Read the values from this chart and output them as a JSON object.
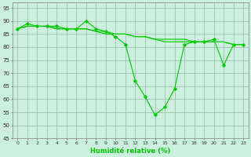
{
  "x": [
    0,
    1,
    2,
    3,
    4,
    5,
    6,
    7,
    8,
    9,
    10,
    11,
    12,
    13,
    14,
    15,
    16,
    17,
    18,
    19,
    20,
    21,
    22,
    23
  ],
  "y_main": [
    87,
    89,
    88,
    88,
    88,
    87,
    87,
    90,
    87,
    86,
    84,
    81,
    67,
    61,
    54,
    57,
    64,
    81,
    82,
    82,
    83,
    73,
    81,
    81
  ],
  "y_trend1": [
    87,
    88,
    88,
    88,
    87,
    87,
    87,
    87,
    86,
    86,
    85,
    85,
    84,
    84,
    83,
    83,
    83,
    83,
    82,
    82,
    82,
    82,
    81,
    81
  ],
  "y_trend2": [
    87,
    88,
    88,
    88,
    87,
    87,
    87,
    87,
    86,
    85,
    85,
    85,
    84,
    84,
    83,
    82,
    82,
    82,
    82,
    82,
    82,
    82,
    81,
    81
  ],
  "xlabel": "Humidité relative (%)",
  "xlim": [
    -0.5,
    23.5
  ],
  "ylim": [
    45,
    97
  ],
  "yticks": [
    45,
    50,
    55,
    60,
    65,
    70,
    75,
    80,
    85,
    90,
    95
  ],
  "xticks": [
    0,
    1,
    2,
    3,
    4,
    5,
    6,
    7,
    8,
    9,
    10,
    11,
    12,
    13,
    14,
    15,
    16,
    17,
    18,
    19,
    20,
    21,
    22,
    23
  ],
  "line_color": "#00cc00",
  "bg_color": "#cceedd",
  "grid_color": "#99bbaa",
  "marker": "D",
  "marker_size": 1.8,
  "line_width": 0.8
}
